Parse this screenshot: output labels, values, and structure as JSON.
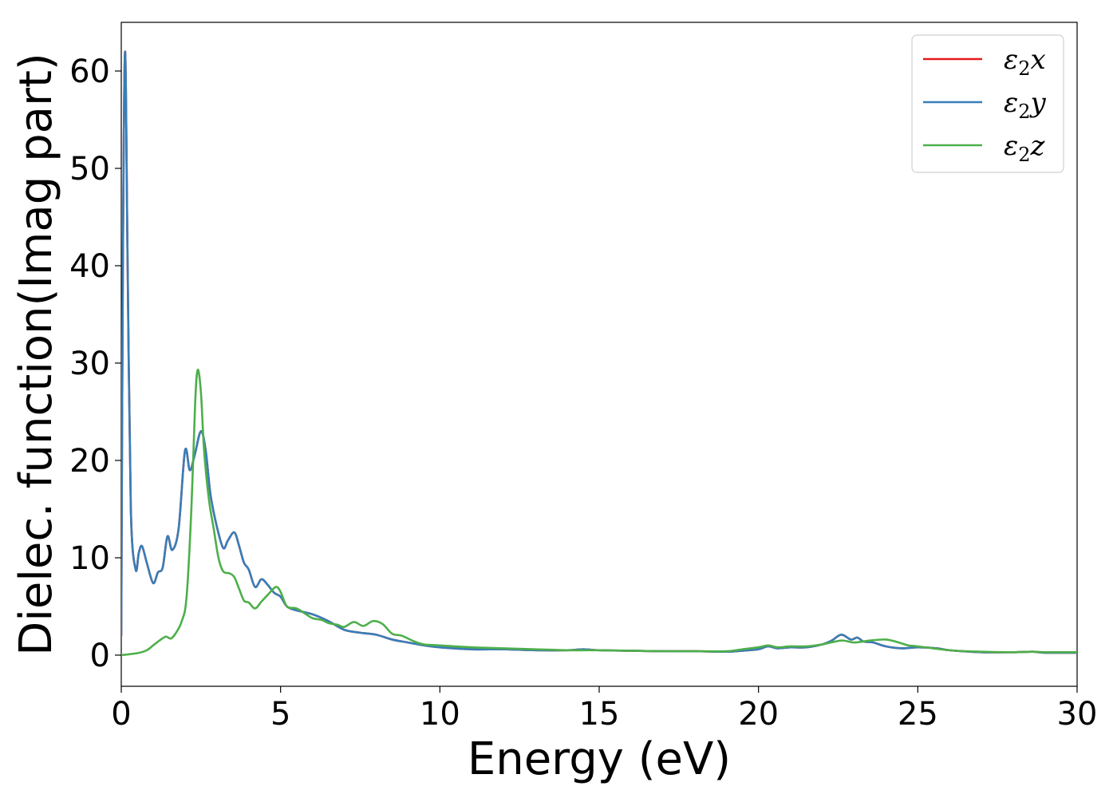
{
  "chart_data": {
    "type": "line",
    "xlabel": "Energy (eV)",
    "ylabel": "Dielec. function(Imag part)",
    "xlim": [
      0,
      30
    ],
    "ylim": [
      -3.2,
      65
    ],
    "xticks": [
      0,
      5,
      10,
      15,
      20,
      25,
      30
    ],
    "yticks": [
      0,
      10,
      20,
      30,
      40,
      50,
      60
    ],
    "grid": false,
    "legend_position": "top-right",
    "series": [
      {
        "name": "ε₂x",
        "label_base": "ε",
        "label_sub": "2",
        "label_axis": "x",
        "color": "#e41a1c",
        "points": [
          [
            0,
            2
          ],
          [
            0.05,
            40
          ],
          [
            0.12,
            62
          ],
          [
            0.2,
            40
          ],
          [
            0.3,
            15
          ],
          [
            0.45,
            8.8
          ],
          [
            0.55,
            10.5
          ],
          [
            0.65,
            11.2
          ],
          [
            0.8,
            9.5
          ],
          [
            1.0,
            7.4
          ],
          [
            1.15,
            8.5
          ],
          [
            1.3,
            9
          ],
          [
            1.45,
            12.2
          ],
          [
            1.6,
            10.8
          ],
          [
            1.8,
            13
          ],
          [
            2.0,
            21
          ],
          [
            2.15,
            19
          ],
          [
            2.3,
            20.5
          ],
          [
            2.5,
            23
          ],
          [
            2.65,
            21
          ],
          [
            2.8,
            16.5
          ],
          [
            3.0,
            13.2
          ],
          [
            3.2,
            11
          ],
          [
            3.35,
            11.8
          ],
          [
            3.55,
            12.6
          ],
          [
            3.7,
            11.2
          ],
          [
            3.85,
            9.5
          ],
          [
            4.0,
            8.8
          ],
          [
            4.2,
            7
          ],
          [
            4.4,
            7.8
          ],
          [
            4.6,
            7.2
          ],
          [
            4.8,
            6.4
          ],
          [
            5.0,
            6
          ],
          [
            5.2,
            5
          ],
          [
            5.5,
            4.6
          ],
          [
            6.0,
            4.2
          ],
          [
            6.5,
            3.5
          ],
          [
            7.0,
            2.6
          ],
          [
            7.5,
            2.3
          ],
          [
            8.0,
            2.1
          ],
          [
            8.5,
            1.6
          ],
          [
            9.0,
            1.3
          ],
          [
            9.5,
            1
          ],
          [
            10,
            0.8
          ],
          [
            11,
            0.6
          ],
          [
            12,
            0.6
          ],
          [
            13,
            0.5
          ],
          [
            14,
            0.5
          ],
          [
            14.5,
            0.6
          ],
          [
            15,
            0.5
          ],
          [
            16,
            0.45
          ],
          [
            17,
            0.4
          ],
          [
            18,
            0.4
          ],
          [
            19,
            0.35
          ],
          [
            19.5,
            0.45
          ],
          [
            20,
            0.6
          ],
          [
            20.3,
            0.9
          ],
          [
            20.6,
            0.7
          ],
          [
            21,
            0.8
          ],
          [
            21.5,
            0.8
          ],
          [
            22,
            1.1
          ],
          [
            22.3,
            1.5
          ],
          [
            22.6,
            2.1
          ],
          [
            22.9,
            1.6
          ],
          [
            23.1,
            1.8
          ],
          [
            23.3,
            1.4
          ],
          [
            23.6,
            1.3
          ],
          [
            24,
            0.9
          ],
          [
            24.5,
            0.7
          ],
          [
            25,
            0.8
          ],
          [
            25.6,
            0.7
          ],
          [
            26,
            0.5
          ],
          [
            27,
            0.3
          ],
          [
            28,
            0.3
          ],
          [
            28.6,
            0.35
          ],
          [
            29,
            0.25
          ],
          [
            30,
            0.25
          ]
        ]
      },
      {
        "name": "ε₂y",
        "label_base": "ε",
        "label_sub": "2",
        "label_axis": "y",
        "color": "#377eb8",
        "points": [
          [
            0,
            2
          ],
          [
            0.05,
            40
          ],
          [
            0.12,
            62
          ],
          [
            0.2,
            40
          ],
          [
            0.3,
            15
          ],
          [
            0.45,
            8.8
          ],
          [
            0.55,
            10.5
          ],
          [
            0.65,
            11.2
          ],
          [
            0.8,
            9.5
          ],
          [
            1.0,
            7.4
          ],
          [
            1.15,
            8.5
          ],
          [
            1.3,
            9
          ],
          [
            1.45,
            12.2
          ],
          [
            1.6,
            10.8
          ],
          [
            1.8,
            13
          ],
          [
            2.0,
            21
          ],
          [
            2.15,
            19
          ],
          [
            2.3,
            20.5
          ],
          [
            2.5,
            23
          ],
          [
            2.65,
            21
          ],
          [
            2.8,
            16.5
          ],
          [
            3.0,
            13.2
          ],
          [
            3.2,
            11
          ],
          [
            3.35,
            11.8
          ],
          [
            3.55,
            12.6
          ],
          [
            3.7,
            11.2
          ],
          [
            3.85,
            9.5
          ],
          [
            4.0,
            8.8
          ],
          [
            4.2,
            7
          ],
          [
            4.4,
            7.8
          ],
          [
            4.6,
            7.2
          ],
          [
            4.8,
            6.4
          ],
          [
            5.0,
            6
          ],
          [
            5.2,
            5
          ],
          [
            5.5,
            4.6
          ],
          [
            6.0,
            4.2
          ],
          [
            6.5,
            3.5
          ],
          [
            7.0,
            2.6
          ],
          [
            7.5,
            2.3
          ],
          [
            8.0,
            2.1
          ],
          [
            8.5,
            1.6
          ],
          [
            9.0,
            1.3
          ],
          [
            9.5,
            1
          ],
          [
            10,
            0.8
          ],
          [
            11,
            0.6
          ],
          [
            12,
            0.6
          ],
          [
            13,
            0.5
          ],
          [
            14,
            0.5
          ],
          [
            14.5,
            0.6
          ],
          [
            15,
            0.5
          ],
          [
            16,
            0.45
          ],
          [
            17,
            0.4
          ],
          [
            18,
            0.4
          ],
          [
            19,
            0.35
          ],
          [
            19.5,
            0.45
          ],
          [
            20,
            0.6
          ],
          [
            20.3,
            0.9
          ],
          [
            20.6,
            0.7
          ],
          [
            21,
            0.8
          ],
          [
            21.5,
            0.8
          ],
          [
            22,
            1.1
          ],
          [
            22.3,
            1.5
          ],
          [
            22.6,
            2.1
          ],
          [
            22.9,
            1.6
          ],
          [
            23.1,
            1.8
          ],
          [
            23.3,
            1.4
          ],
          [
            23.6,
            1.3
          ],
          [
            24,
            0.9
          ],
          [
            24.5,
            0.7
          ],
          [
            25,
            0.8
          ],
          [
            25.6,
            0.7
          ],
          [
            26,
            0.5
          ],
          [
            27,
            0.3
          ],
          [
            28,
            0.3
          ],
          [
            28.6,
            0.35
          ],
          [
            29,
            0.25
          ],
          [
            30,
            0.25
          ]
        ]
      },
      {
        "name": "ε₂z",
        "label_base": "ε",
        "label_sub": "2",
        "label_axis": "z",
        "color": "#4daf4a",
        "points": [
          [
            0,
            0
          ],
          [
            0.5,
            0.2
          ],
          [
            0.8,
            0.5
          ],
          [
            1.0,
            1
          ],
          [
            1.2,
            1.5
          ],
          [
            1.4,
            1.9
          ],
          [
            1.55,
            1.7
          ],
          [
            1.7,
            2.2
          ],
          [
            1.9,
            3.5
          ],
          [
            2.05,
            6
          ],
          [
            2.2,
            15
          ],
          [
            2.32,
            26
          ],
          [
            2.4,
            29.3
          ],
          [
            2.5,
            27
          ],
          [
            2.6,
            21
          ],
          [
            2.75,
            16
          ],
          [
            2.9,
            13
          ],
          [
            3.05,
            10
          ],
          [
            3.2,
            8.6
          ],
          [
            3.4,
            8.4
          ],
          [
            3.55,
            8
          ],
          [
            3.7,
            6.8
          ],
          [
            3.85,
            5.6
          ],
          [
            4.0,
            5.4
          ],
          [
            4.2,
            4.8
          ],
          [
            4.4,
            5.5
          ],
          [
            4.6,
            6.2
          ],
          [
            4.85,
            7
          ],
          [
            5.0,
            6.5
          ],
          [
            5.2,
            5
          ],
          [
            5.5,
            4.8
          ],
          [
            5.8,
            4.2
          ],
          [
            6.0,
            3.8
          ],
          [
            6.3,
            3.6
          ],
          [
            6.5,
            3.3
          ],
          [
            6.8,
            3.1
          ],
          [
            7.0,
            2.9
          ],
          [
            7.3,
            3.4
          ],
          [
            7.6,
            3
          ],
          [
            7.9,
            3.5
          ],
          [
            8.2,
            3.2
          ],
          [
            8.5,
            2.2
          ],
          [
            8.8,
            2
          ],
          [
            9.2,
            1.4
          ],
          [
            9.5,
            1.1
          ],
          [
            10,
            1
          ],
          [
            11,
            0.8
          ],
          [
            12,
            0.7
          ],
          [
            13,
            0.6
          ],
          [
            14,
            0.5
          ],
          [
            15,
            0.5
          ],
          [
            16,
            0.45
          ],
          [
            17,
            0.4
          ],
          [
            18,
            0.4
          ],
          [
            19,
            0.4
          ],
          [
            19.5,
            0.6
          ],
          [
            20,
            0.8
          ],
          [
            20.3,
            1
          ],
          [
            20.6,
            0.8
          ],
          [
            21,
            0.9
          ],
          [
            21.5,
            0.9
          ],
          [
            22,
            1.1
          ],
          [
            22.6,
            1.5
          ],
          [
            23,
            1.3
          ],
          [
            23.5,
            1.5
          ],
          [
            24,
            1.6
          ],
          [
            24.4,
            1.3
          ],
          [
            24.7,
            1
          ],
          [
            25,
            0.9
          ],
          [
            26,
            0.5
          ],
          [
            27,
            0.35
          ],
          [
            28,
            0.3
          ],
          [
            28.6,
            0.35
          ],
          [
            29,
            0.3
          ],
          [
            30,
            0.3
          ]
        ]
      }
    ]
  }
}
